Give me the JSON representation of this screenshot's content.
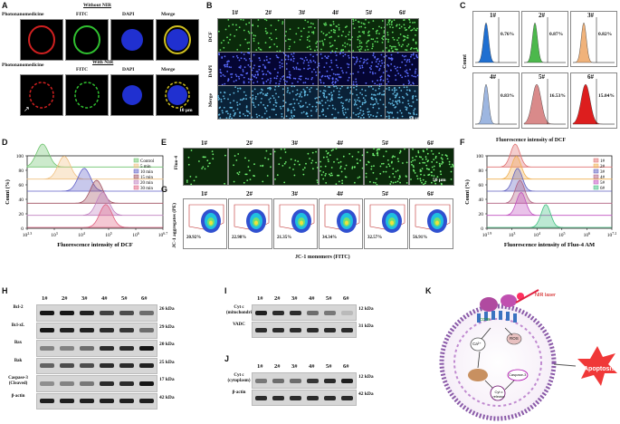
{
  "panels": {
    "A": "A",
    "B": "B",
    "C": "C",
    "D": "D",
    "E": "E",
    "F": "F",
    "G": "G",
    "H": "H",
    "I": "I",
    "J": "J",
    "K": "K"
  },
  "A": {
    "without_nir": "Without NIR",
    "with_nir": "With NIR",
    "columns": [
      "Photonanomedicine",
      "FITC",
      "DAPI",
      "Merge"
    ],
    "scale": "10 μm"
  },
  "B": {
    "groups": [
      "1#",
      "2#",
      "3#",
      "4#",
      "5#",
      "6#"
    ],
    "rows": [
      "DCF",
      "DAPI",
      "Merge"
    ],
    "scale": "50 μm"
  },
  "C": {
    "groups": [
      "1#",
      "2#",
      "3#",
      "4#",
      "5#",
      "6#"
    ],
    "percentages": [
      "0.76%",
      "0.87%",
      "0.82%",
      "0.83%",
      "16.53%",
      "15.04%"
    ],
    "colors": [
      "#1f6fd1",
      "#4cb84c",
      "#f0b27a",
      "#9db6e0",
      "#d98a8a",
      "#dd1e1e"
    ],
    "ylabel": "Count",
    "xlabel": "Fluorescence intensity of DCF"
  },
  "D": {
    "ylabel": "Count (%)",
    "xlabel": "Fluorescence intensity of DCF",
    "yticks": [
      "0",
      "20",
      "40",
      "60",
      "80",
      "100"
    ],
    "xticks": [
      "10^2.3",
      "10^3",
      "10^4",
      "10^5",
      "10^6",
      "10^6.7"
    ],
    "legend": [
      "Control",
      "5 min",
      "10 min",
      "15 min",
      "20 min",
      "30 min"
    ],
    "colors": [
      "#6cc36c",
      "#f0c080",
      "#6060c8",
      "#a05060",
      "#c080c0",
      "#e06080"
    ],
    "peaks_log10": [
      2.8,
      3.5,
      4.15,
      4.55,
      4.75,
      4.85
    ]
  },
  "E": {
    "groups": [
      "1#",
      "2#",
      "3#",
      "4#",
      "5#",
      "6#"
    ],
    "row": "Fluo-4",
    "scale": "50 μm"
  },
  "F": {
    "ylabel": "Count (%)",
    "xlabel": "Fluorescence intensity of Fluo-4 AM",
    "yticks": [
      "0",
      "20",
      "40",
      "60",
      "80",
      "100"
    ],
    "xticks": [
      "10^1.9",
      "10^3",
      "10^4",
      "10^5",
      "10^6",
      "10^7.2"
    ],
    "legend": [
      "1#",
      "2#",
      "3#",
      "4#",
      "5#",
      "6#"
    ],
    "colors": [
      "#e07070",
      "#f0b050",
      "#6060c0",
      "#b06080",
      "#c050c0",
      "#40c080"
    ],
    "peaks_log10": [
      3.1,
      3.15,
      3.2,
      3.3,
      3.35,
      4.4
    ]
  },
  "G": {
    "groups": [
      "1#",
      "2#",
      "3#",
      "4#",
      "5#",
      "6#"
    ],
    "percentages": [
      "20.92%",
      "22.98%",
      "21.35%",
      "34.34%",
      "32.57%",
      "56.91%"
    ],
    "ylabel": "JC-1 aggregates (PE)",
    "xlabel": "JC-1 monomers (FITC)"
  },
  "H": {
    "groups": [
      "1#",
      "2#",
      "3#",
      "4#",
      "5#",
      "6#"
    ],
    "rows": [
      {
        "name": "Bcl-2",
        "kda": "26 kDa",
        "intensity": [
          0.95,
          0.95,
          0.9,
          0.75,
          0.7,
          0.55
        ]
      },
      {
        "name": "Bcl-xL",
        "kda": "29 kDa",
        "intensity": [
          0.95,
          0.9,
          0.9,
          0.85,
          0.8,
          0.55
        ]
      },
      {
        "name": "Bax",
        "kda": "20 kDa",
        "intensity": [
          0.45,
          0.45,
          0.55,
          0.85,
          0.85,
          0.95
        ]
      },
      {
        "name": "Bak",
        "kda": "25 kDa",
        "intensity": [
          0.6,
          0.7,
          0.7,
          0.85,
          0.85,
          0.9
        ]
      },
      {
        "name": "Caspase-3 (Cleaved)",
        "kda": "17 kDa",
        "intensity": [
          0.4,
          0.45,
          0.5,
          0.85,
          0.85,
          0.95
        ]
      },
      {
        "name": "β-actin",
        "kda": "42 kDa",
        "intensity": [
          0.9,
          0.9,
          0.9,
          0.9,
          0.9,
          0.9
        ]
      }
    ]
  },
  "I": {
    "groups": [
      "1#",
      "2#",
      "3#",
      "4#",
      "5#",
      "6#"
    ],
    "rows": [
      {
        "name": "Cyt c (mitochondrial)",
        "kda": "12 kDa",
        "intensity": [
          0.9,
          0.85,
          0.85,
          0.55,
          0.5,
          0.2
        ]
      },
      {
        "name": "VADC",
        "kda": "31 kDa",
        "intensity": [
          0.85,
          0.85,
          0.85,
          0.85,
          0.85,
          0.85
        ]
      }
    ]
  },
  "J": {
    "groups": [
      "1#",
      "2#",
      "3#",
      "4#",
      "5#",
      "6#"
    ],
    "rows": [
      {
        "name": "Cyt c (cytoplasm)",
        "kda": "12 kDa",
        "intensity": [
          0.5,
          0.55,
          0.55,
          0.8,
          0.85,
          0.9
        ]
      },
      {
        "name": "β-actin",
        "kda": "42 kDa",
        "intensity": [
          0.85,
          0.85,
          0.85,
          0.85,
          0.85,
          0.85
        ]
      }
    ]
  },
  "K": {
    "nir": "NIR laser",
    "ros": "ROS",
    "cd38": "CD38",
    "ca": "Ca²⁺",
    "cytc": "Cyt c release",
    "casp": "Caspase-3",
    "apoptosis": "Apoptosis"
  }
}
